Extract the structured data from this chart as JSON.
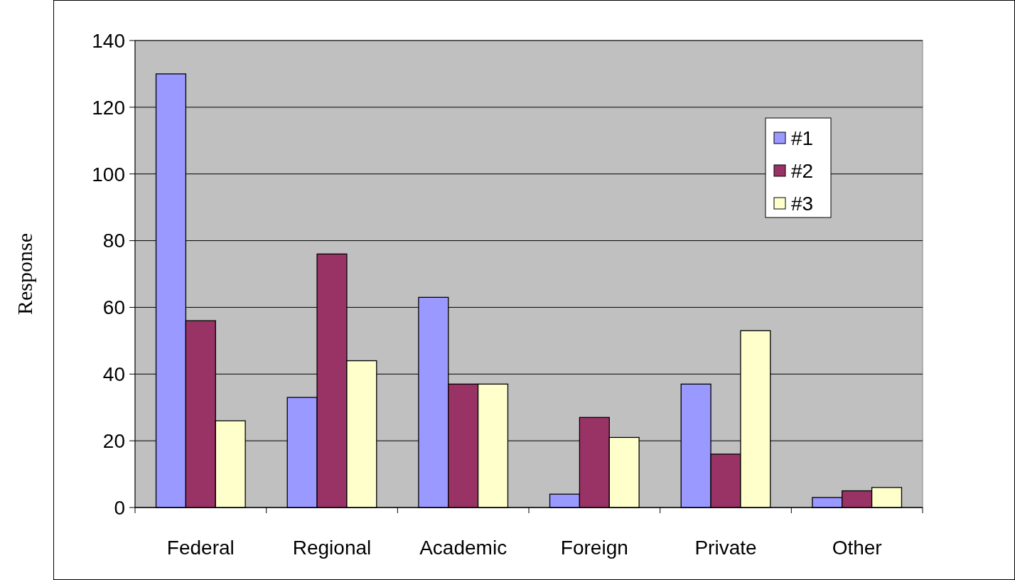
{
  "chart_data": {
    "type": "bar",
    "ylabel": "Response",
    "categories": [
      "Federal",
      "Regional",
      "Academic",
      "Foreign",
      "Private",
      "Other"
    ],
    "series": [
      {
        "name": "#1",
        "color": "#9999ff",
        "values": [
          130,
          33,
          63,
          4,
          37,
          3
        ]
      },
      {
        "name": "#2",
        "color": "#993366",
        "values": [
          56,
          76,
          37,
          27,
          16,
          5
        ]
      },
      {
        "name": "#3",
        "color": "#ffffcc",
        "values": [
          26,
          44,
          37,
          21,
          53,
          6
        ]
      }
    ],
    "ylim": [
      0,
      140
    ],
    "yticks": [
      0,
      20,
      40,
      60,
      80,
      100,
      120,
      140
    ],
    "grid": "y",
    "legend": "top right"
  }
}
